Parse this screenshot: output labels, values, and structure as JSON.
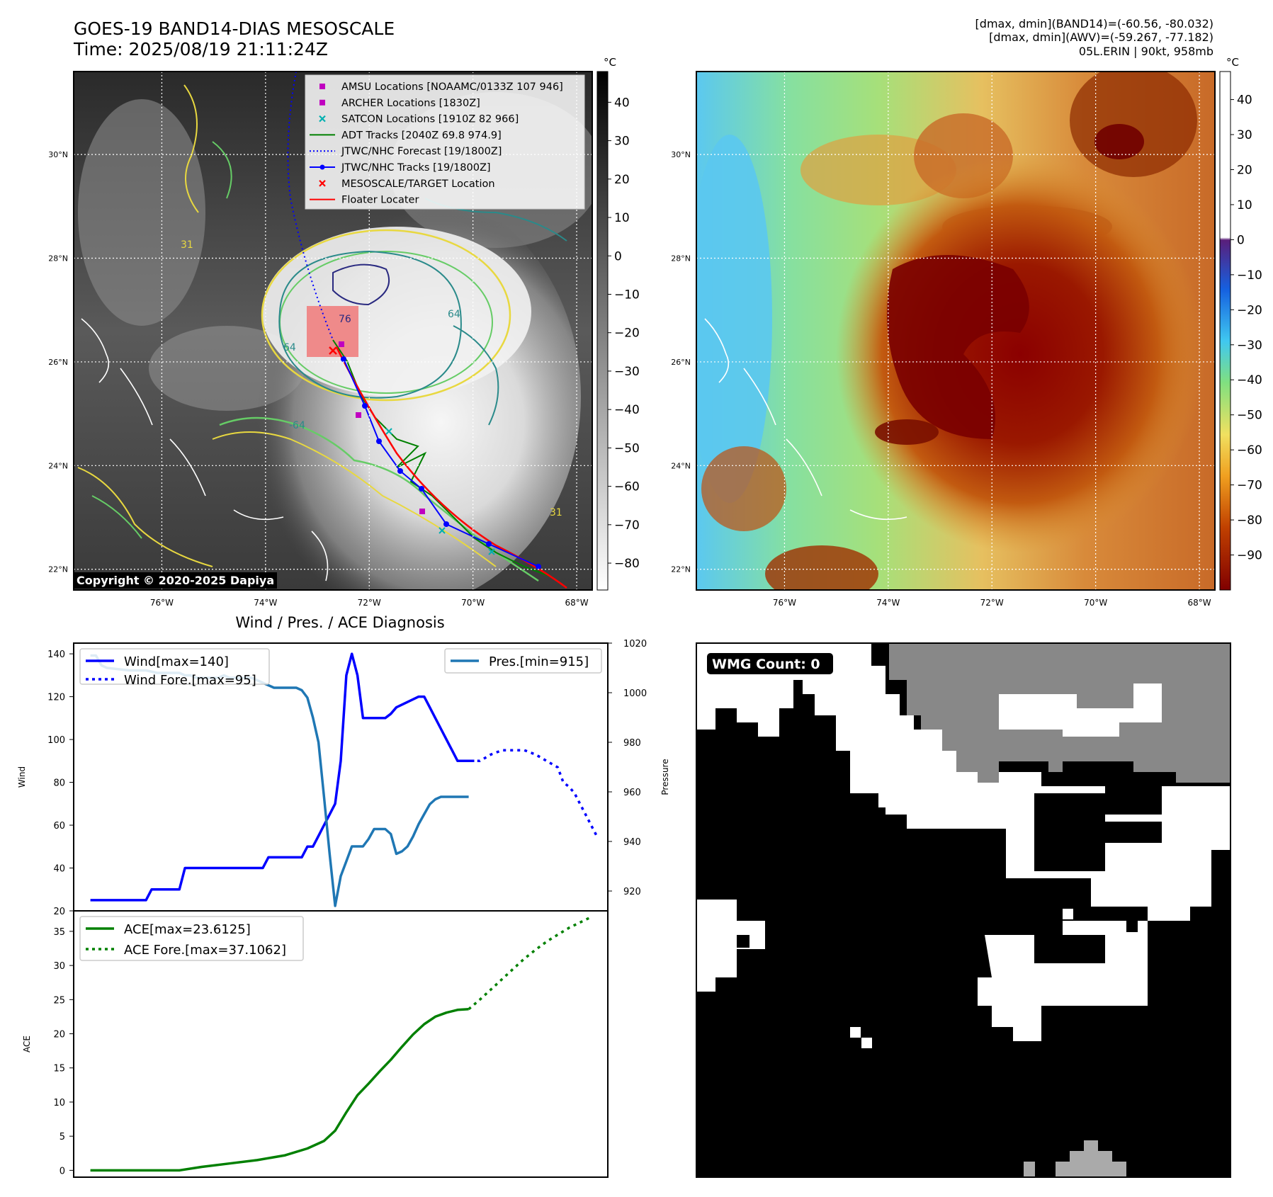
{
  "header": {
    "title_line1": "GOES-19 BAND14-DIAS MESOSCALE",
    "title_line2": "Time: 2025/08/19 21:11:24Z",
    "info_line1": "[dmax, dmin](BAND14)=(-60.56, -80.032)",
    "info_line2": "[dmax, dmin](AWV)=(-59.267, -77.182)",
    "info_line3": "05L.ERIN | 90kt, 958mb"
  },
  "copyright": "Copyright © 2020-2025 Dapiya",
  "maps": {
    "lon_labels": [
      "76°W",
      "74°W",
      "72°W",
      "70°W",
      "68°W"
    ],
    "lat_labels": [
      "30°N",
      "28°N",
      "26°N",
      "24°N",
      "22°N"
    ],
    "lon_values": [
      -76,
      -74,
      -72,
      -70,
      -68
    ],
    "lat_values": [
      30,
      28,
      26,
      24,
      22
    ],
    "lon_range": [
      -77.7,
      -67.7
    ],
    "lat_range": [
      21.6,
      31.6
    ],
    "contour_labels": [
      "64",
      "76",
      "64",
      "-64",
      "31",
      "31"
    ]
  },
  "ir_colorbar": {
    "unit": "°C",
    "ticks": [
      "40",
      "30",
      "20",
      "10",
      "0",
      "−10",
      "−20",
      "−30",
      "−40",
      "−50",
      "−60",
      "−70",
      "−80"
    ],
    "range": [
      -87,
      48
    ]
  },
  "awv_colorbar": {
    "unit": "°C",
    "ticks": [
      "40",
      "30",
      "20",
      "10",
      "0",
      "−10",
      "−20",
      "−30",
      "−40",
      "−50",
      "−60",
      "−70",
      "−80",
      "−90"
    ],
    "range": [
      -100,
      48
    ]
  },
  "legend": {
    "items": [
      {
        "label": "AMSU Locations [NOAAMC/0133Z 107 946]",
        "symbol": "square",
        "color": "#c000c0"
      },
      {
        "label": "ARCHER Locations [1830Z]",
        "symbol": "square",
        "color": "#c000c0"
      },
      {
        "label": "SATCON Locations [1910Z 82 966]",
        "symbol": "x",
        "color": "#00b0b0"
      },
      {
        "label": "ADT Tracks [2040Z 69.8 974.9]",
        "symbol": "line",
        "color": "#008000"
      },
      {
        "label": "JTWC/NHC Forecast [19/1800Z]",
        "symbol": "dotted",
        "color": "#0000ff"
      },
      {
        "label": "JTWC/NHC Tracks [19/1800Z]",
        "symbol": "line-dot",
        "color": "#0000ff"
      },
      {
        "label": "MESOSCALE/TARGET Location",
        "symbol": "x",
        "color": "#ff0000"
      },
      {
        "label": "Floater Locater",
        "symbol": "line",
        "color": "#ff0000"
      }
    ]
  },
  "wmg": {
    "badge": "WMG Count: 0"
  },
  "chart_data": [
    {
      "type": "line",
      "title": "Wind / Pres. / ACE Diagnosis",
      "ylabel": "Wind",
      "y2label": "Pressure",
      "ylim": [
        20,
        145
      ],
      "y2lim": [
        912,
        1020
      ],
      "xlim": [
        -3,
        93
      ],
      "yticks": [
        20,
        40,
        60,
        80,
        100,
        120,
        140
      ],
      "y2ticks": [
        920,
        940,
        960,
        980,
        1000,
        1020
      ],
      "legend_left": [
        "Wind[max=140]",
        "Wind Fore.[max=95]"
      ],
      "legend_right": [
        "Pres.[min=915]"
      ],
      "series": [
        {
          "name": "Wind[max=140]",
          "color": "#0000ff",
          "style": "solid",
          "axis": "left",
          "x": [
            0,
            10,
            11,
            16,
            17,
            31,
            32,
            38,
            39,
            40,
            41,
            42,
            43,
            44,
            45,
            46,
            47,
            48,
            49,
            50,
            53,
            54,
            55,
            59,
            60,
            61,
            62,
            63,
            64,
            65,
            66,
            67,
            68,
            69
          ],
          "y": [
            25,
            25,
            30,
            30,
            40,
            40,
            45,
            45,
            50,
            50,
            55,
            60,
            65,
            70,
            90,
            130,
            140,
            130,
            110,
            110,
            110,
            112,
            115,
            120,
            120,
            115,
            110,
            105,
            100,
            95,
            90,
            90,
            90,
            90
          ]
        },
        {
          "name": "Wind Fore.[max=95]",
          "color": "#0000ff",
          "style": "dotted",
          "axis": "left",
          "x": [
            67,
            69,
            70,
            72,
            74,
            76,
            78,
            80,
            82,
            84,
            85,
            86,
            87,
            88,
            89,
            90,
            91
          ],
          "y": [
            90,
            90,
            90,
            93,
            95,
            95,
            95,
            93,
            90,
            87,
            80,
            78,
            75,
            70,
            65,
            60,
            55
          ]
        },
        {
          "name": "Pres.[min=915]",
          "color": "#1f77b4",
          "style": "solid",
          "axis": "right",
          "x": [
            0,
            1,
            2,
            3,
            7,
            10,
            12,
            15,
            16,
            17,
            18,
            19,
            20,
            21,
            22,
            23,
            24,
            25,
            26,
            27,
            28,
            29,
            30,
            31,
            32,
            33,
            34,
            35,
            36,
            37,
            38,
            39,
            40,
            41,
            42,
            43,
            44,
            45,
            46,
            47,
            48,
            49,
            50,
            51,
            52,
            53,
            54,
            55,
            56,
            57,
            58,
            59,
            60,
            61,
            62,
            63,
            64,
            65,
            66,
            67,
            68
          ],
          "y": [
            1015,
            1015,
            1011,
            1010,
            1009,
            1009,
            1008,
            1008,
            1008,
            1007,
            1007,
            1006,
            1006,
            1006,
            1006,
            1006,
            1007,
            1006,
            1006,
            1006,
            1006,
            1006,
            1005,
            1004,
            1003,
            1002,
            1002,
            1002,
            1002,
            1002,
            1001,
            998,
            990,
            980,
            958,
            935,
            914,
            926,
            932,
            938,
            938,
            938,
            941,
            945,
            945,
            945,
            943,
            935,
            936,
            938,
            942,
            947,
            951,
            955,
            957,
            958,
            958,
            958,
            958,
            958,
            958
          ]
        }
      ]
    },
    {
      "type": "line",
      "ylabel": "ACE",
      "ylim": [
        -1,
        38
      ],
      "xlim": [
        -3,
        93
      ],
      "yticks": [
        0,
        5,
        10,
        15,
        20,
        25,
        30,
        35
      ],
      "legend": [
        "ACE[max=23.6125]",
        "ACE Fore.[max=37.1062]"
      ],
      "series": [
        {
          "name": "ACE[max=23.6125]",
          "color": "#008000",
          "style": "solid",
          "x": [
            0,
            5,
            10,
            16,
            20,
            25,
            30,
            35,
            39,
            42,
            44,
            46,
            48,
            50,
            52,
            54,
            56,
            58,
            60,
            62,
            64,
            66,
            68
          ],
          "y": [
            0,
            0,
            0,
            0,
            0.5,
            1,
            1.5,
            2.2,
            3.2,
            4.3,
            5.8,
            8.5,
            11,
            12.7,
            14.5,
            16.2,
            18.1,
            19.9,
            21.4,
            22.5,
            23.1,
            23.5,
            23.6
          ]
        },
        {
          "name": "ACE Fore.[max=37.1062]",
          "color": "#008000",
          "style": "dotted",
          "x": [
            68,
            70,
            72,
            74,
            76,
            78,
            80,
            82,
            84,
            86,
            88,
            90
          ],
          "y": [
            23.6,
            25,
            26.5,
            28,
            29.5,
            31,
            32.3,
            33.5,
            34.5,
            35.5,
            36.3,
            37.1
          ]
        }
      ]
    }
  ]
}
